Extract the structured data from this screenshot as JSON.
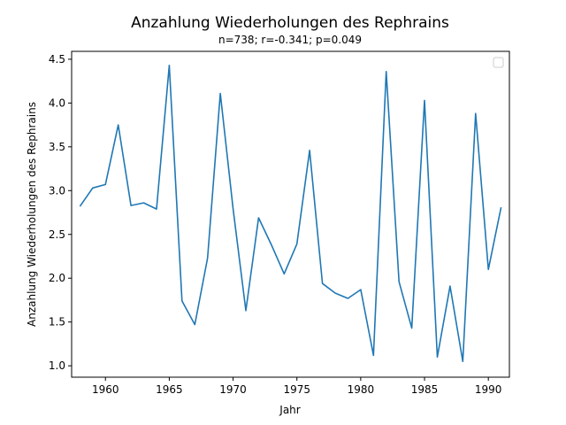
{
  "chart_data": {
    "type": "line",
    "title": "Anzahlung Wiederholungen des Rephrains",
    "subtitle": "n=738; r=-0.341; p=0.049",
    "xlabel": "Jahr",
    "ylabel": "Anzahlung Wiederholungen des Rephrains",
    "xlim": [
      1957.35,
      1991.65
    ],
    "ylim": [
      0.87,
      4.59
    ],
    "xticks": [
      1960,
      1965,
      1970,
      1975,
      1980,
      1985,
      1990
    ],
    "yticks": [
      1.0,
      1.5,
      2.0,
      2.5,
      3.0,
      3.5,
      4.0,
      4.5
    ],
    "grid": false,
    "legend": "top-right (empty)",
    "series": [
      {
        "color": "#1f77b4",
        "x": [
          1958,
          1959,
          1960,
          1961,
          1962,
          1963,
          1964,
          1965,
          1966,
          1967,
          1968,
          1969,
          1970,
          1971,
          1972,
          1973,
          1974,
          1975,
          1976,
          1977,
          1978,
          1979,
          1980,
          1981,
          1982,
          1983,
          1984,
          1985,
          1986,
          1987,
          1988,
          1989,
          1990,
          1991
        ],
        "y": [
          2.82,
          3.03,
          3.07,
          3.75,
          2.83,
          2.86,
          2.79,
          4.43,
          1.74,
          1.47,
          2.23,
          4.11,
          2.79,
          1.63,
          2.69,
          2.38,
          2.05,
          2.39,
          3.46,
          1.94,
          1.83,
          1.77,
          1.87,
          1.12,
          4.36,
          1.96,
          1.43,
          4.03,
          1.1,
          1.91,
          1.05,
          3.88,
          2.1,
          2.81
        ]
      }
    ]
  }
}
